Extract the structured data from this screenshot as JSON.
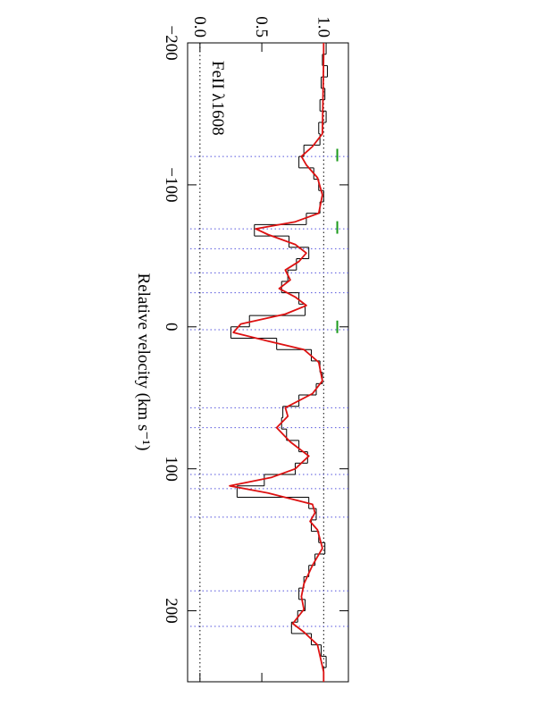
{
  "chart_data": {
    "type": "spectrum",
    "annotation": "FeII λ1608",
    "xlabel": "Relative velocity (km s⁻¹)",
    "xlim": [
      -200,
      250
    ],
    "ylim": [
      -0.1,
      1.2
    ],
    "xticks": [
      {
        "value": -200,
        "label": "−200"
      },
      {
        "value": -100,
        "label": "−100"
      },
      0,
      100,
      200
    ],
    "yticks": [
      {
        "value": 0,
        "label": "0.0"
      },
      0.5,
      {
        "value": 1,
        "label": "1.0"
      }
    ],
    "reference_lines": [
      0,
      1
    ],
    "reference_color": "#000",
    "components": [
      -120,
      -69,
      -55,
      -38,
      -24,
      2,
      57,
      71,
      104,
      114,
      134,
      186,
      211
    ],
    "component_color": "#5555dd",
    "markers": [
      -121,
      -70,
      0
    ],
    "marker_color": "#1a9a1a",
    "data": {
      "color": "#000",
      "x": [
        -196,
        -188,
        -180,
        -172,
        -164,
        -156,
        -148,
        -140,
        -132,
        -124,
        -116,
        -108,
        -100,
        -92,
        -84,
        -76,
        -68,
        -60,
        -52,
        -44,
        -36,
        -28,
        -20,
        -12,
        -4,
        4,
        12,
        20,
        28,
        36,
        44,
        52,
        60,
        68,
        76,
        84,
        92,
        100,
        108,
        116,
        124,
        132,
        140,
        148,
        156,
        164,
        172,
        180,
        188,
        196,
        204,
        212,
        220,
        228,
        236,
        244
      ],
      "values": [
        1.02,
        0.99,
        1.03,
        0.98,
        1.01,
        0.97,
        1.02,
        0.96,
        0.97,
        0.84,
        0.8,
        0.92,
        0.96,
        1.0,
        0.97,
        0.86,
        0.44,
        0.72,
        0.88,
        0.78,
        0.71,
        0.66,
        0.8,
        0.85,
        0.4,
        0.25,
        0.62,
        0.9,
        0.97,
        0.99,
        0.94,
        0.8,
        0.67,
        0.66,
        0.7,
        0.8,
        0.87,
        0.77,
        0.52,
        0.3,
        0.88,
        0.94,
        0.9,
        0.96,
        1.01,
        0.93,
        0.88,
        0.84,
        0.8,
        0.85,
        0.79,
        0.74,
        0.9,
        0.98,
        1.02,
        1.0
      ]
    },
    "model": {
      "color": "#dd1111",
      "x": [
        -200,
        -191,
        -136,
        -127,
        -120,
        -114,
        -105,
        -93,
        -80,
        -74,
        -69,
        -65,
        -58,
        -52,
        -46,
        -40,
        -33,
        -27,
        -21,
        -15,
        -9,
        -2,
        4,
        10,
        16,
        25,
        38,
        47,
        57,
        63,
        71,
        81,
        91,
        100,
        106,
        112,
        117,
        125,
        131,
        137,
        143,
        156,
        168,
        181,
        190,
        199,
        209,
        215,
        224,
        243,
        250
      ],
      "values": [
        1.0,
        1.0,
        0.99,
        0.91,
        0.82,
        0.86,
        0.95,
        0.99,
        0.96,
        0.77,
        0.45,
        0.55,
        0.77,
        0.86,
        0.8,
        0.69,
        0.73,
        0.64,
        0.77,
        0.86,
        0.69,
        0.33,
        0.27,
        0.55,
        0.84,
        0.96,
        0.99,
        0.91,
        0.69,
        0.71,
        0.62,
        0.73,
        0.88,
        0.77,
        0.58,
        0.24,
        0.55,
        0.91,
        0.93,
        0.89,
        0.95,
        0.99,
        0.91,
        0.84,
        0.82,
        0.84,
        0.75,
        0.84,
        0.95,
        1.0,
        1.0
      ]
    }
  }
}
